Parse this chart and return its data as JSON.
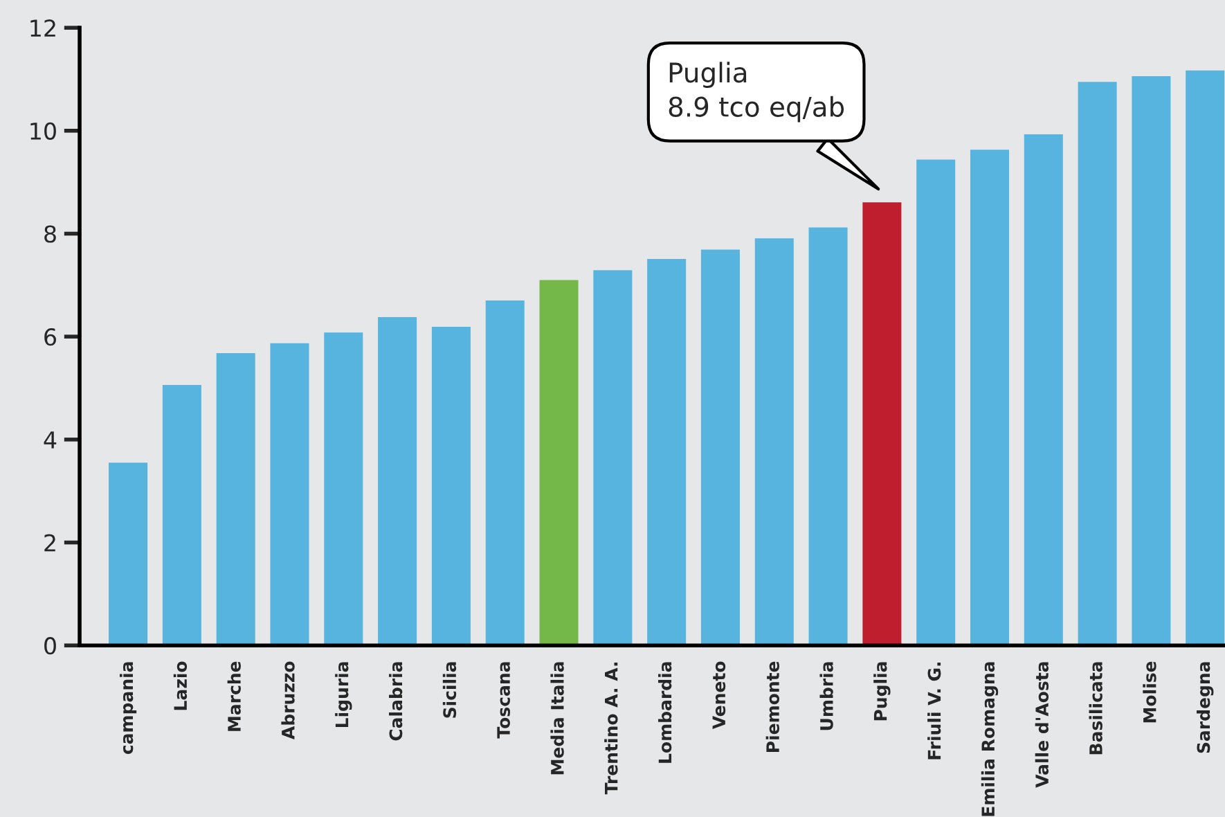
{
  "chart_data": {
    "type": "bar",
    "categories": [
      "campania",
      "Lazio",
      "Marche",
      "Abruzzo",
      "Liguria",
      "Calabria",
      "Sicilia",
      "Toscana",
      "Media Italia",
      "Trentino A. A.",
      "Lombardia",
      "Veneto",
      "Piemonte",
      "Umbria",
      "Puglia",
      "Friuli V. G.",
      "Emilia Romagna",
      "Valle d'Aosta",
      "Basilicata",
      "Molise",
      "Sardegna"
    ],
    "values": [
      3.55,
      5.06,
      5.68,
      5.87,
      6.08,
      6.38,
      6.19,
      6.7,
      7.1,
      7.29,
      7.51,
      7.69,
      7.91,
      8.12,
      8.61,
      9.44,
      9.63,
      9.93,
      10.95,
      11.06,
      11.17
    ],
    "colors": [
      "#56b4de",
      "#56b4de",
      "#56b4de",
      "#56b4de",
      "#56b4de",
      "#56b4de",
      "#56b4de",
      "#56b4de",
      "#74b84a",
      "#56b4de",
      "#56b4de",
      "#56b4de",
      "#56b4de",
      "#56b4de",
      "#be1e2d",
      "#56b4de",
      "#56b4de",
      "#56b4de",
      "#56b4de",
      "#56b4de",
      "#56b4de"
    ],
    "ylim": [
      0,
      12
    ],
    "yticks": [
      0,
      2,
      4,
      6,
      8,
      10,
      12
    ],
    "grid": false,
    "annotations": [
      "Puglia\n8.9 tco eq/ab"
    ]
  }
}
